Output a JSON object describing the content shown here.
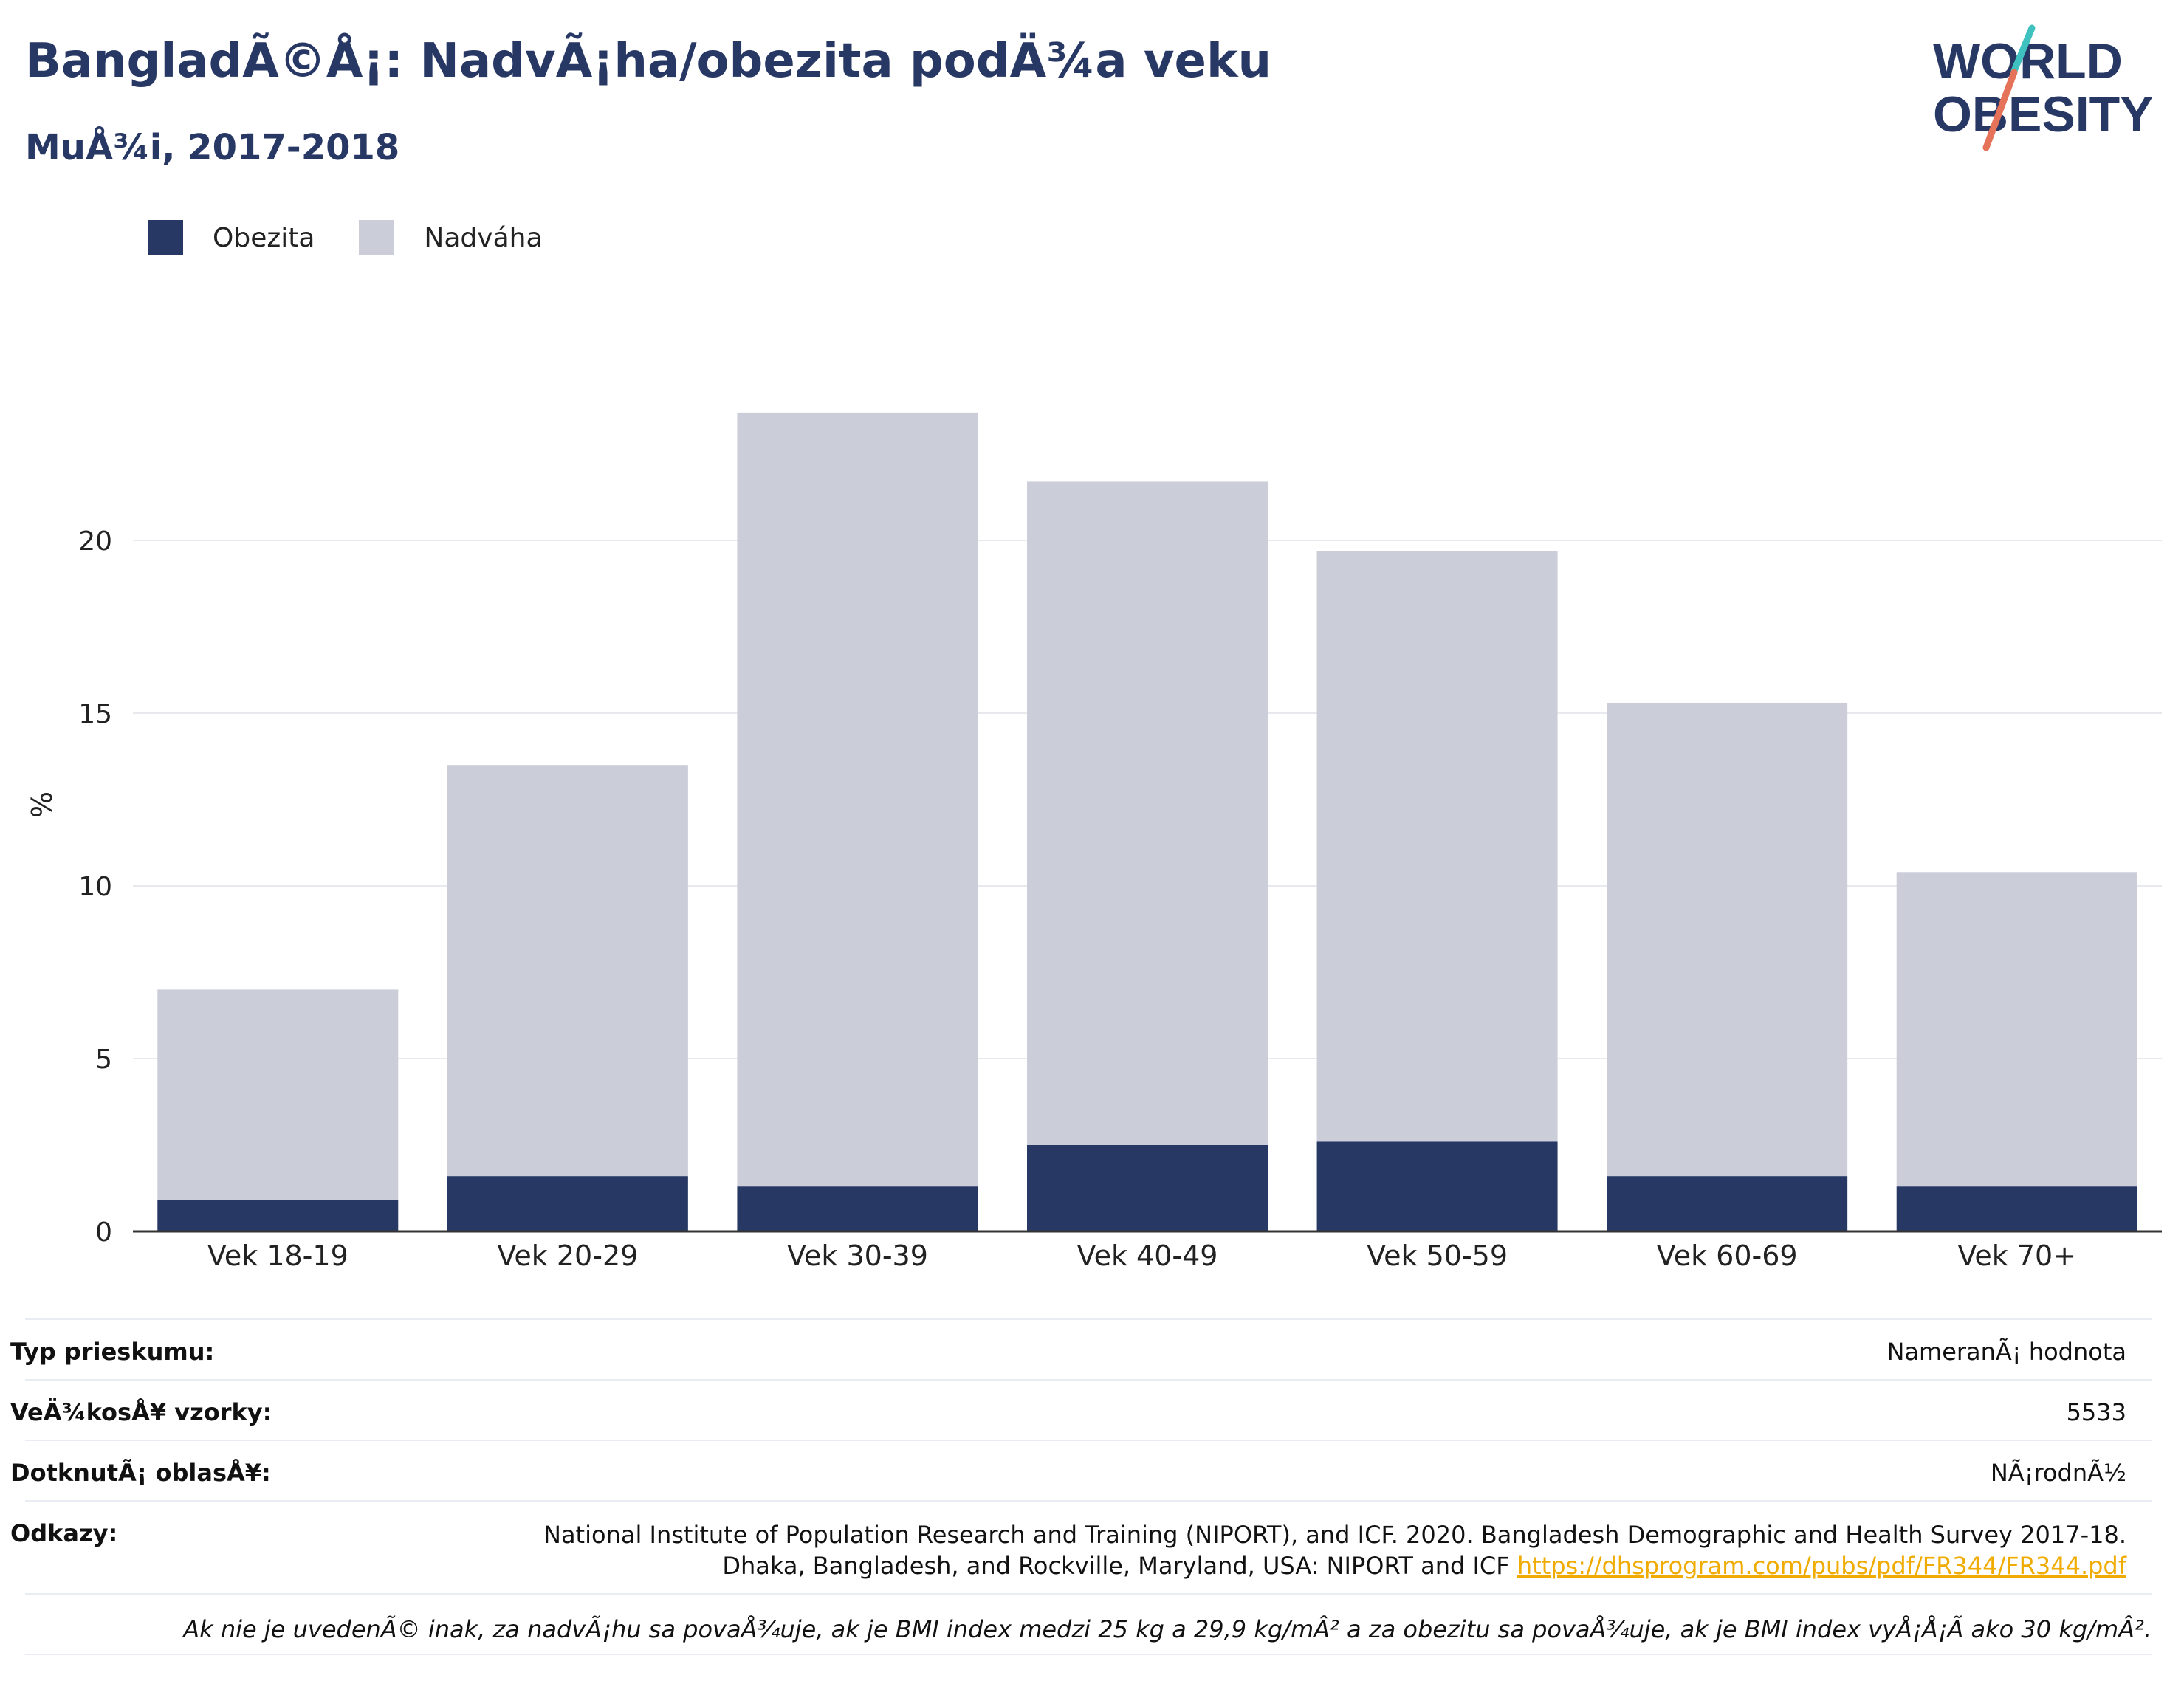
{
  "header": {
    "title": "BangladÃ©Å¡: NadvÃ¡ha/obezita podÄ¾a veku",
    "subtitle": "MuÅ¾i, 2017-2018"
  },
  "logo": {
    "line1": "WORLD",
    "line2": "OBESITY"
  },
  "colors": {
    "obesity": "#283865",
    "overweight": "#cbcdd8",
    "accent_red": "#e5735a",
    "accent_teal": "#3fc1c0"
  },
  "chart_data": {
    "type": "bar",
    "stacked": true,
    "categories": [
      "Vek 18-19",
      "Vek 20-29",
      "Vek 30-39",
      "Vek 40-49",
      "Vek 50-59",
      "Vek 60-69",
      "Vek 70+"
    ],
    "series": [
      {
        "name": "Obezita",
        "values": [
          0.9,
          1.6,
          1.3,
          2.5,
          2.6,
          1.6,
          1.3
        ]
      },
      {
        "name": "Nadváha",
        "values": [
          6.1,
          11.9,
          22.4,
          19.2,
          17.1,
          13.7,
          9.1
        ]
      }
    ],
    "ylabel": "%",
    "yticks": [
      0,
      5,
      10,
      15,
      20
    ],
    "ylim": [
      0,
      25
    ],
    "grid": true,
    "legend": "top-left"
  },
  "meta": {
    "survey_type_label": "Typ prieskumu:",
    "survey_type_value": "NameranÃ¡ hodnota",
    "sample_size_label": "VeÄ¾kosÅ¥ vzorky:",
    "sample_size_value": "5533",
    "area_label": "DotknutÃ¡ oblasÅ¥:",
    "area_value": "NÃ¡rodnÃ½",
    "refs_label": "Odkazy:",
    "refs_line1": "National Institute of Population Research and Training (NIPORT), and ICF. 2020. Bangladesh Demographic and Health Survey 2017-18.",
    "refs_line2": "Dhaka, Bangladesh, and Rockville, Maryland, USA: NIPORT and ICF",
    "refs_link": "https://dhsprogram.com/pubs/pdf/FR344/FR344.pdf",
    "footnote": "Ak nie je uvedenÃ© inak, za nadvÃ¡hu sa povaÅ¾uje, ak je BMI index medzi 25 kg a 29,9 kg/mÂ² a za obezitu sa povaÅ¾uje, ak je BMI index vyÅ¡Å¡Ã ako 30 kg/mÂ²."
  }
}
